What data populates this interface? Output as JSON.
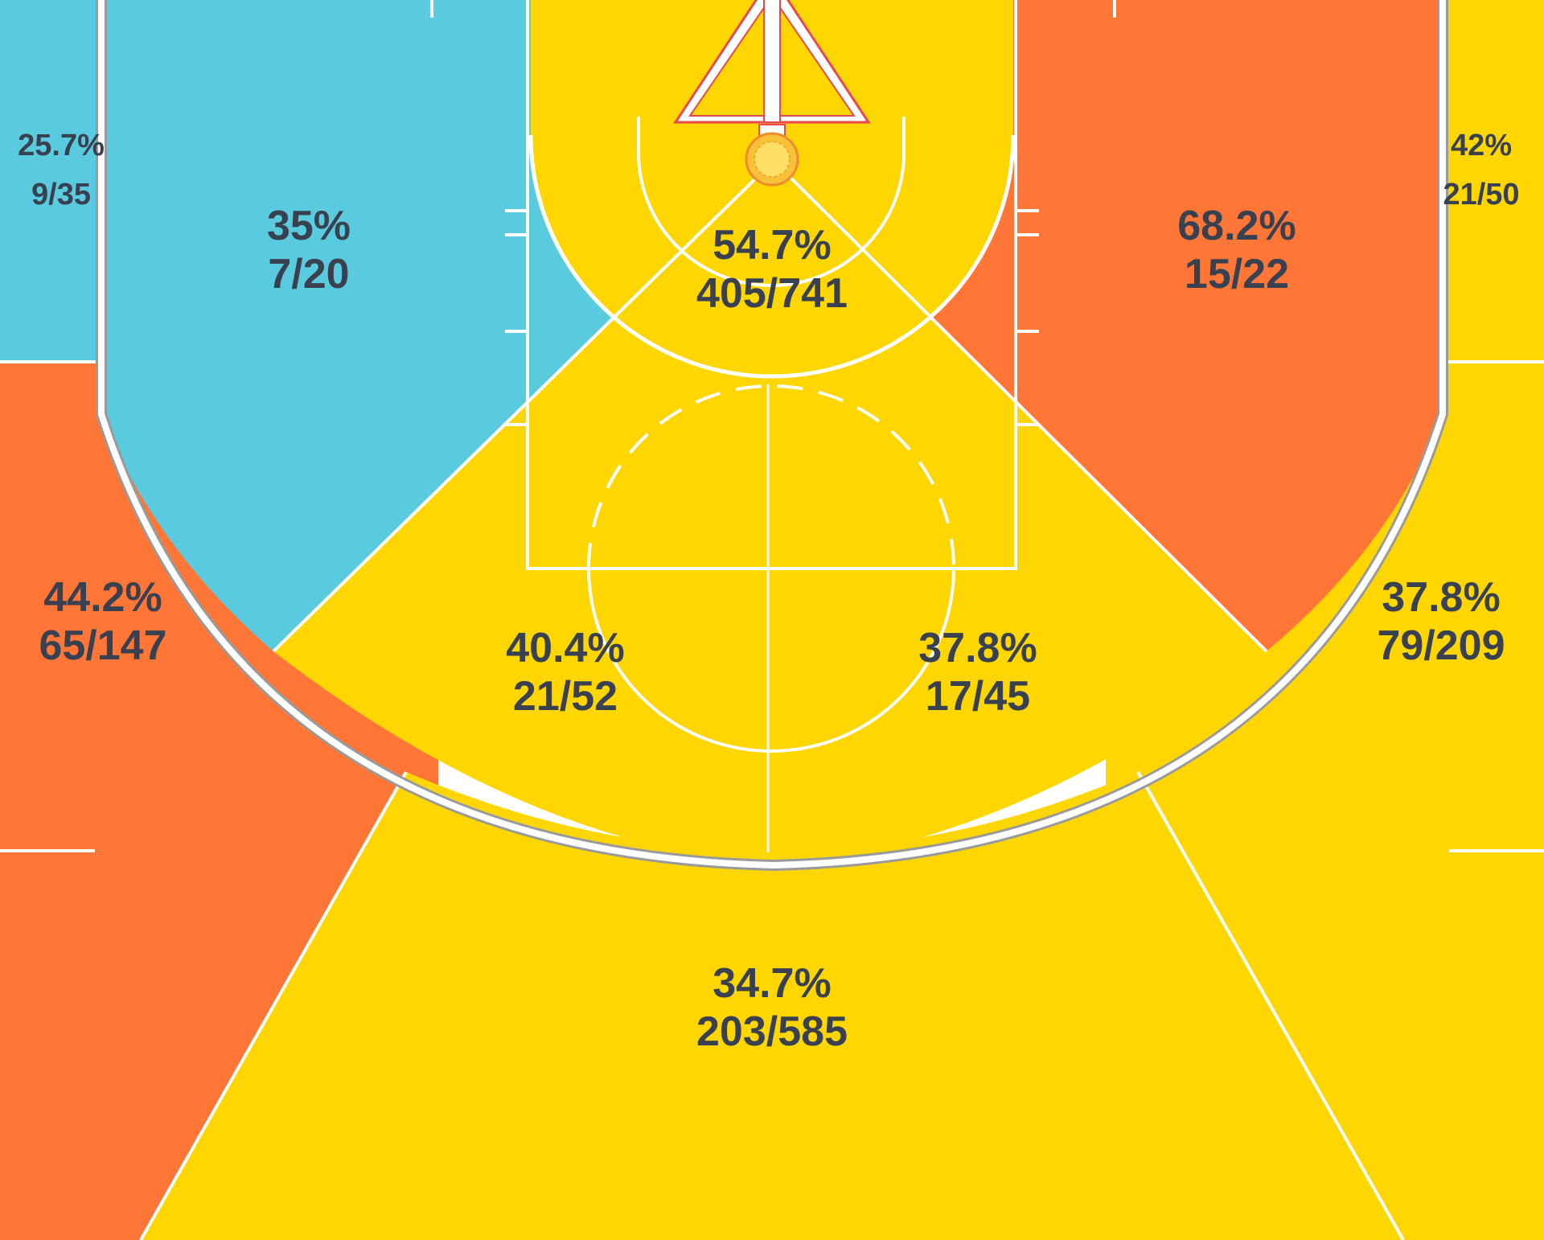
{
  "chart_data": {
    "type": "shot_chart",
    "colors": {
      "above": "#FF7636",
      "average": "#FFD600",
      "below": "#5ACBDF",
      "lines": "#FFFFFF",
      "arc_stroke": "#9A9A9A",
      "text": "#394150",
      "hoop_red": "#E8484F"
    },
    "zones": [
      {
        "id": "left-corner-three",
        "pct": "25.7%",
        "made_att": "9/35",
        "made": 9,
        "attempts": 35,
        "color": "below"
      },
      {
        "id": "right-corner-three",
        "pct": "42%",
        "made_att": "21/50",
        "made": 21,
        "attempts": 50,
        "color": "average"
      },
      {
        "id": "left-baseline-mid",
        "pct": "35%",
        "made_att": "7/20",
        "made": 7,
        "attempts": 20,
        "color": "below"
      },
      {
        "id": "restricted-area",
        "pct": "54.7%",
        "made_att": "405/741",
        "made": 405,
        "attempts": 741,
        "color": "average"
      },
      {
        "id": "right-baseline-mid",
        "pct": "68.2%",
        "made_att": "15/22",
        "made": 15,
        "attempts": 22,
        "color": "above"
      },
      {
        "id": "left-wing-three",
        "pct": "44.2%",
        "made_att": "65/147",
        "made": 65,
        "attempts": 147,
        "color": "above"
      },
      {
        "id": "left-elbow-mid",
        "pct": "40.4%",
        "made_att": "21/52",
        "made": 21,
        "attempts": 52,
        "color": "average"
      },
      {
        "id": "right-elbow-mid",
        "pct": "37.8%",
        "made_att": "17/45",
        "made": 17,
        "attempts": 45,
        "color": "average"
      },
      {
        "id": "right-wing-three",
        "pct": "37.8%",
        "made_att": "79/209",
        "made": 79,
        "attempts": 209,
        "color": "average"
      },
      {
        "id": "top-key-three",
        "pct": "34.7%",
        "made_att": "203/585",
        "made": 203,
        "attempts": 585,
        "color": "average"
      }
    ]
  }
}
